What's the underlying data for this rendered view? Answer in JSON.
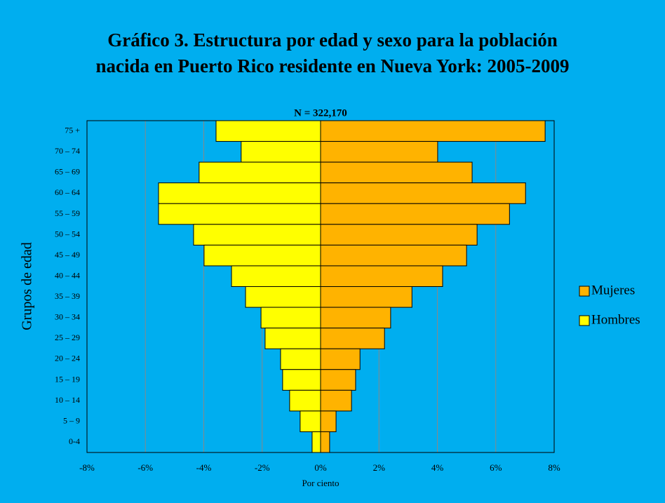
{
  "chart_data": {
    "type": "pyramid",
    "title": [
      "Gráfico 3. Estructura por edad y sexo para la población",
      "nacida en Puerto Rico residente en Nueva York: 2005-2009"
    ],
    "subtitle": "N = 322,170",
    "x_label": "Por ciento",
    "y_label": "Grupos de edad",
    "categories": [
      "75 +",
      "70 – 74",
      "65 – 69",
      "60 – 64",
      "55 – 59",
      "50 – 54",
      "45 – 49",
      "40 – 44",
      "35 – 39",
      "30 – 34",
      "25 – 29",
      "20 – 24",
      "15 – 19",
      "10 – 14",
      "5 – 9",
      "0-4"
    ],
    "series": [
      {
        "name": "Mujeres",
        "color": "#ffb300",
        "values": [
          7.69,
          4.01,
          5.19,
          7.02,
          6.47,
          5.36,
          5.0,
          4.18,
          3.13,
          2.4,
          2.19,
          1.35,
          1.2,
          1.06,
          0.53,
          0.31
        ]
      },
      {
        "name": "Hombres",
        "color": "#ffff00",
        "values": [
          -3.58,
          -2.72,
          -4.16,
          -5.55,
          -5.55,
          -4.35,
          -3.99,
          -3.05,
          -2.57,
          -2.04,
          -1.9,
          -1.37,
          -1.3,
          -1.06,
          -0.7,
          -0.29
        ]
      }
    ],
    "xlim": [
      -8,
      8
    ],
    "xticks": [
      {
        "value": -8,
        "label": "-8%"
      },
      {
        "value": -6,
        "label": "-6%"
      },
      {
        "value": -4,
        "label": "-4%"
      },
      {
        "value": -2,
        "label": "-2%"
      },
      {
        "value": 0,
        "label": "0%"
      },
      {
        "value": 2,
        "label": "2%"
      },
      {
        "value": 4,
        "label": "4%"
      },
      {
        "value": 6,
        "label": "6%"
      },
      {
        "value": 8,
        "label": "8%"
      }
    ],
    "grid": true,
    "legend": "right"
  }
}
